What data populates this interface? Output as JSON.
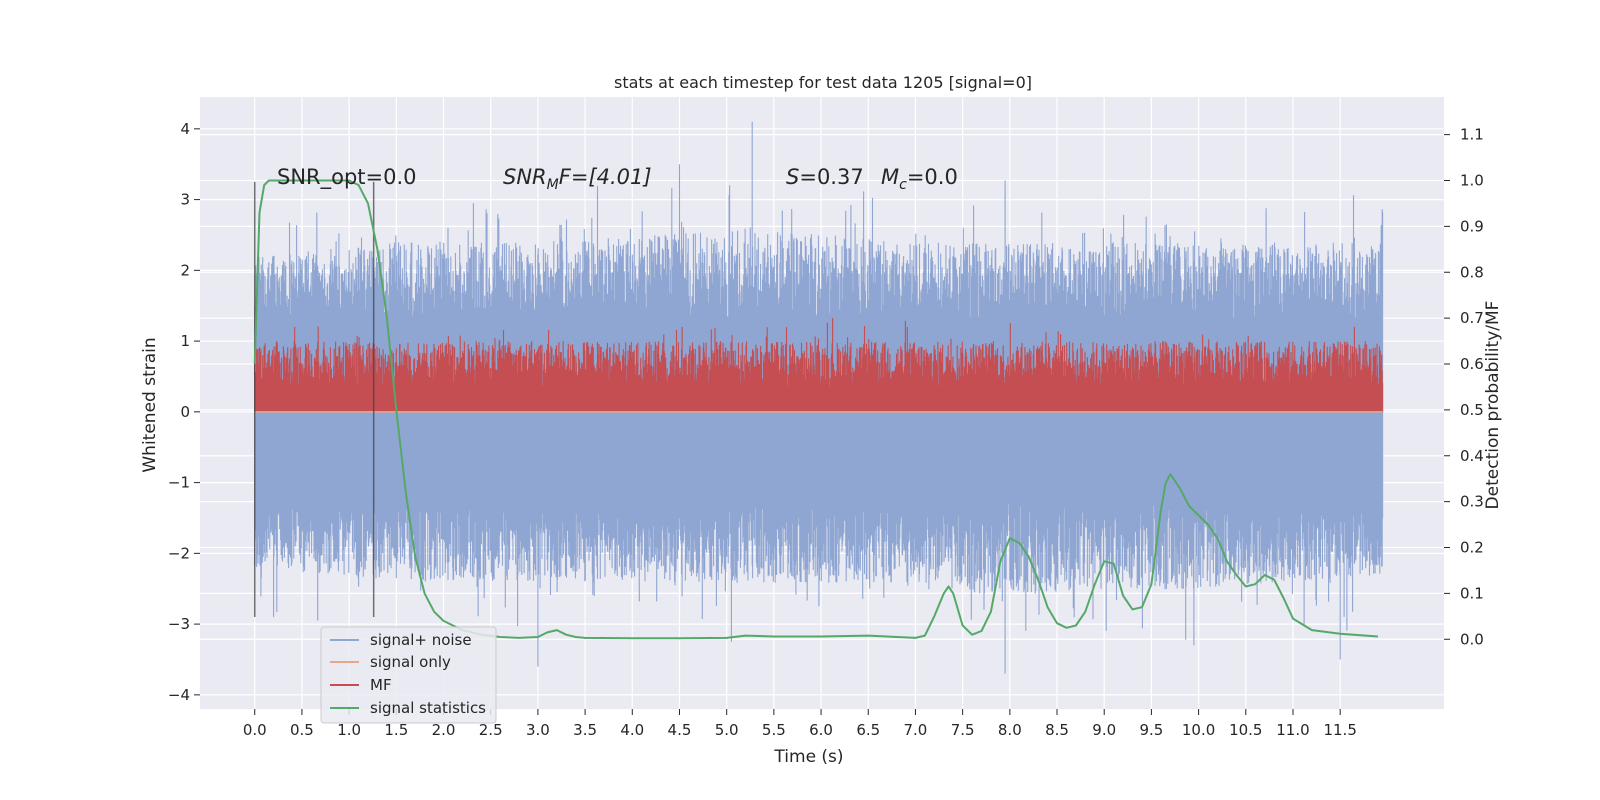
{
  "chart_data": {
    "type": "line",
    "title": "stats at each timestep for test data 1205 [signal=0]",
    "xlabel": "Time (s)",
    "ylabel": "Whitened strain",
    "y2label": "Detection probability/MF",
    "xlim": [
      -0.58,
      12.6
    ],
    "ylim": [
      -4.2,
      4.45
    ],
    "y2lim": [
      -0.152,
      1.182
    ],
    "xticks": [
      "0.0",
      "0.5",
      "1.0",
      "1.5",
      "2.0",
      "2.5",
      "3.0",
      "3.5",
      "4.0",
      "4.5",
      "5.0",
      "5.5",
      "6.0",
      "6.5",
      "7.0",
      "7.5",
      "8.0",
      "8.5",
      "9.0",
      "9.5",
      "10.0",
      "10.5",
      "11.0",
      "11.5"
    ],
    "yticks": [
      "4",
      "3",
      "2",
      "1",
      "0",
      "−1",
      "−2",
      "−3",
      "−4"
    ],
    "y2ticks": [
      "1.1",
      "1.0",
      "0.9",
      "0.8",
      "0.7",
      "0.6",
      "0.5",
      "0.4",
      "0.3",
      "0.2",
      "0.1",
      "0.0"
    ],
    "grid": true,
    "legend_position": "lower-left",
    "annotations": {
      "snr_opt": "SNR_opt=0.0",
      "snr_mf_main": "SNR",
      "snr_mf_sub": "M",
      "snr_mf_rest": "F=[4.01]",
      "s_label": "S",
      "s_value": "=0.37",
      "mc_main": "M",
      "mc_sub": "c",
      "mc_value": "=0.0"
    },
    "vlines_x": [
      0.0,
      1.26
    ],
    "series": [
      {
        "name": "signal+ noise",
        "color": "#8fa6d2",
        "axis": "left",
        "x_range": [
          0.0,
          11.95
        ],
        "samples": 2400,
        "envelope_high": [
          [
            0.0,
            2.2
          ],
          [
            1.5,
            2.4
          ],
          [
            3.0,
            2.4
          ],
          [
            5.25,
            2.6
          ],
          [
            7.0,
            2.4
          ],
          [
            8.5,
            2.4
          ],
          [
            10.0,
            2.4
          ],
          [
            11.95,
            2.4
          ]
        ],
        "envelope_low": [
          [
            0.0,
            -2.2
          ],
          [
            1.5,
            -2.4
          ],
          [
            3.0,
            -2.4
          ],
          [
            5.0,
            -2.4
          ],
          [
            7.0,
            -2.5
          ],
          [
            8.0,
            -2.6
          ],
          [
            10.0,
            -2.5
          ],
          [
            11.95,
            -2.3
          ]
        ],
        "extremes": [
          [
            5.27,
            4.1
          ],
          [
            7.95,
            3.27
          ],
          [
            4.5,
            3.5
          ],
          [
            3.0,
            -3.6
          ],
          [
            7.95,
            -3.7
          ],
          [
            9.95,
            -3.3
          ],
          [
            11.5,
            -3.5
          ],
          [
            5.05,
            -3.25
          ],
          [
            0.2,
            -2.9
          ]
        ]
      },
      {
        "name": "signal only",
        "color": "#e8a888",
        "axis": "left",
        "x": [
          0.0,
          11.95
        ],
        "y": [
          0.0,
          0.0
        ]
      },
      {
        "name": "MF",
        "color": "#c44e52",
        "axis": "right",
        "x_range": [
          0.0,
          11.95
        ],
        "samples": 2400,
        "baseline": 0.5,
        "peak_range": [
          0.55,
          0.65
        ]
      },
      {
        "name": "signal statistics",
        "color": "#55a868",
        "axis": "right",
        "x": [
          0.0,
          0.05,
          0.1,
          0.15,
          0.25,
          0.4,
          0.6,
          0.8,
          1.0,
          1.1,
          1.2,
          1.3,
          1.4,
          1.5,
          1.6,
          1.7,
          1.8,
          1.9,
          2.0,
          2.1,
          2.2,
          2.4,
          2.6,
          2.8,
          3.0,
          3.1,
          3.2,
          3.3,
          3.4,
          3.5,
          4.0,
          4.5,
          5.0,
          5.2,
          5.5,
          6.0,
          6.5,
          7.0,
          7.1,
          7.2,
          7.3,
          7.35,
          7.4,
          7.5,
          7.6,
          7.7,
          7.8,
          7.9,
          8.0,
          8.1,
          8.2,
          8.3,
          8.4,
          8.5,
          8.6,
          8.7,
          8.8,
          8.9,
          9.0,
          9.1,
          9.2,
          9.3,
          9.4,
          9.5,
          9.6,
          9.65,
          9.7,
          9.8,
          9.9,
          10.0,
          10.1,
          10.2,
          10.3,
          10.4,
          10.5,
          10.6,
          10.7,
          10.8,
          10.9,
          11.0,
          11.2,
          11.5,
          11.9
        ],
        "y": [
          0.6,
          0.93,
          0.99,
          1.0,
          1.0,
          1.0,
          1.0,
          1.0,
          1.0,
          0.99,
          0.95,
          0.85,
          0.7,
          0.5,
          0.32,
          0.18,
          0.1,
          0.06,
          0.04,
          0.03,
          0.02,
          0.01,
          0.005,
          0.003,
          0.005,
          0.015,
          0.02,
          0.01,
          0.005,
          0.003,
          0.002,
          0.002,
          0.003,
          0.008,
          0.006,
          0.006,
          0.008,
          0.003,
          0.008,
          0.05,
          0.1,
          0.115,
          0.1,
          0.03,
          0.01,
          0.018,
          0.06,
          0.17,
          0.22,
          0.21,
          0.18,
          0.13,
          0.07,
          0.035,
          0.025,
          0.03,
          0.06,
          0.12,
          0.17,
          0.165,
          0.095,
          0.065,
          0.07,
          0.12,
          0.28,
          0.34,
          0.36,
          0.33,
          0.29,
          0.27,
          0.25,
          0.22,
          0.17,
          0.14,
          0.115,
          0.12,
          0.14,
          0.13,
          0.09,
          0.045,
          0.02,
          0.012,
          0.006
        ]
      }
    ]
  }
}
